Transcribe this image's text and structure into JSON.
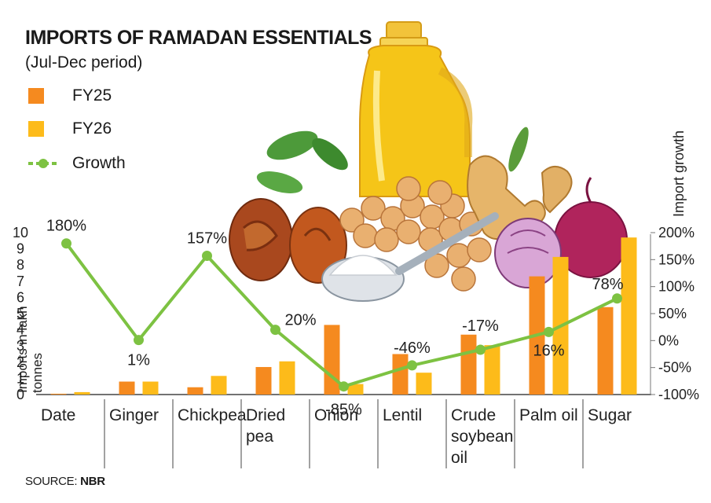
{
  "title": "IMPORTS OF RAMADAN ESSENTIALS",
  "subtitle": "(Jul-Dec period)",
  "legend": {
    "fy25": "FY25",
    "fy26": "FY26",
    "growth": "Growth"
  },
  "source": {
    "prefix": "SOURCE: ",
    "name": "NBR"
  },
  "colors": {
    "fy25": "#f58a1f",
    "fy26": "#fdbb1a",
    "growth": "#7dc242"
  },
  "chart_data": {
    "type": "bar",
    "categories": [
      "Date",
      "Ginger",
      "Chickpea",
      "Dried pea",
      "Onion",
      "Lentil",
      "Crude soybean oil",
      "Palm oil",
      "Sugar"
    ],
    "category_lines": [
      [
        "Date"
      ],
      [
        "Ginger"
      ],
      [
        "Chickpea"
      ],
      [
        "Dried",
        "pea"
      ],
      [
        "Onion"
      ],
      [
        "Lentil"
      ],
      [
        "Crude",
        "soybean",
        "oil"
      ],
      [
        "Palm oil"
      ],
      [
        "Sugar"
      ]
    ],
    "series": [
      {
        "name": "FY25",
        "values": [
          0.05,
          0.8,
          0.45,
          1.7,
          4.3,
          2.5,
          3.7,
          7.3,
          5.4
        ]
      },
      {
        "name": "FY26",
        "values": [
          0.15,
          0.8,
          1.15,
          2.05,
          0.65,
          1.35,
          3.05,
          8.5,
          9.7
        ]
      }
    ],
    "growth": {
      "name": "Growth",
      "values": [
        180,
        1,
        157,
        20,
        -85,
        -46,
        -17,
        16,
        78
      ],
      "labels": [
        "180%",
        "1%",
        "157%",
        "20%",
        "-85%",
        "-46%",
        "-17%",
        "16%",
        "78%"
      ]
    },
    "ylabel": "Imports in lakh tonnes",
    "ylabel_lines": [
      "Imports in lakh",
      "tonnes"
    ],
    "y2label": "Import growth",
    "ylim": [
      0,
      10
    ],
    "yticks": [
      0,
      1,
      2,
      3,
      4,
      5,
      6,
      7,
      8,
      9,
      10
    ],
    "y2lim": [
      -100,
      200
    ],
    "y2ticks": [
      -100,
      -50,
      0,
      50,
      100,
      150,
      200
    ],
    "y2ticklabels": [
      "-100%",
      "-50%",
      "0%",
      "50%",
      "100%",
      "150%",
      "200%"
    ],
    "grid": false,
    "legend_position": "top-left"
  }
}
